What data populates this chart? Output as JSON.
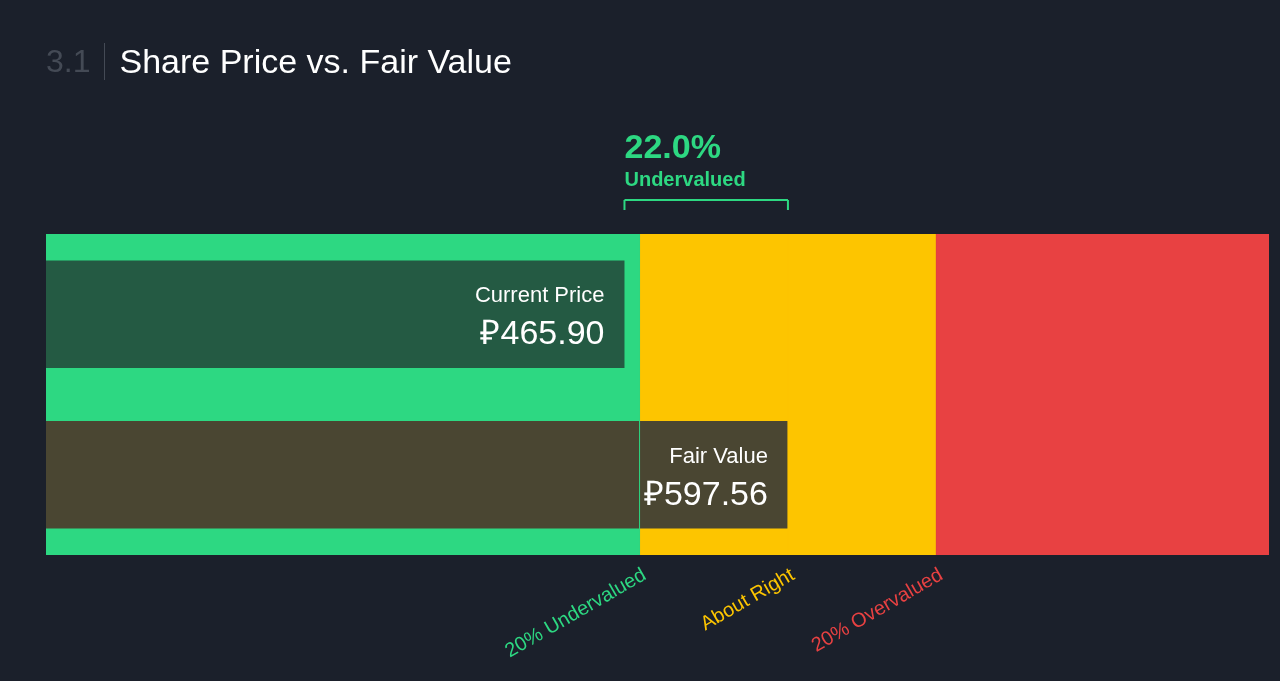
{
  "chart_data": {
    "type": "bar",
    "title": "Share Price vs. Fair Value",
    "subtitle": "3.1",
    "orientation": "horizontal",
    "categories": [
      "Current Price",
      "Fair Value"
    ],
    "values": [
      465.9,
      597.56
    ],
    "value_labels": [
      "₽465.90",
      "₽597.56"
    ],
    "colors": [
      "#245a43",
      "#4a4632"
    ],
    "tick_labels": false,
    "bands": [
      {
        "axis": "x",
        "from": 0,
        "to": 478.05,
        "color": "#2dd882"
      },
      {
        "axis": "x",
        "from": 478.05,
        "to": 717.07,
        "color": "#fdc500"
      },
      {
        "axis": "x",
        "from": 717.07,
        "to": 985,
        "color": "#e84142"
      }
    ],
    "ref_lines": [
      {
        "axis": "x",
        "value": 478.05,
        "label": "20% Undervalued",
        "color": "#2dd882"
      },
      {
        "axis": "x",
        "value": 597.56,
        "label": "About Right",
        "color": "#fdc500"
      },
      {
        "axis": "x",
        "value": 717.07,
        "label": "20% Overvalued",
        "color": "#e84142"
      }
    ],
    "annotations": [
      "22.0%",
      "Undervalued"
    ],
    "xlim": [
      0,
      985
    ],
    "legend": false
  }
}
